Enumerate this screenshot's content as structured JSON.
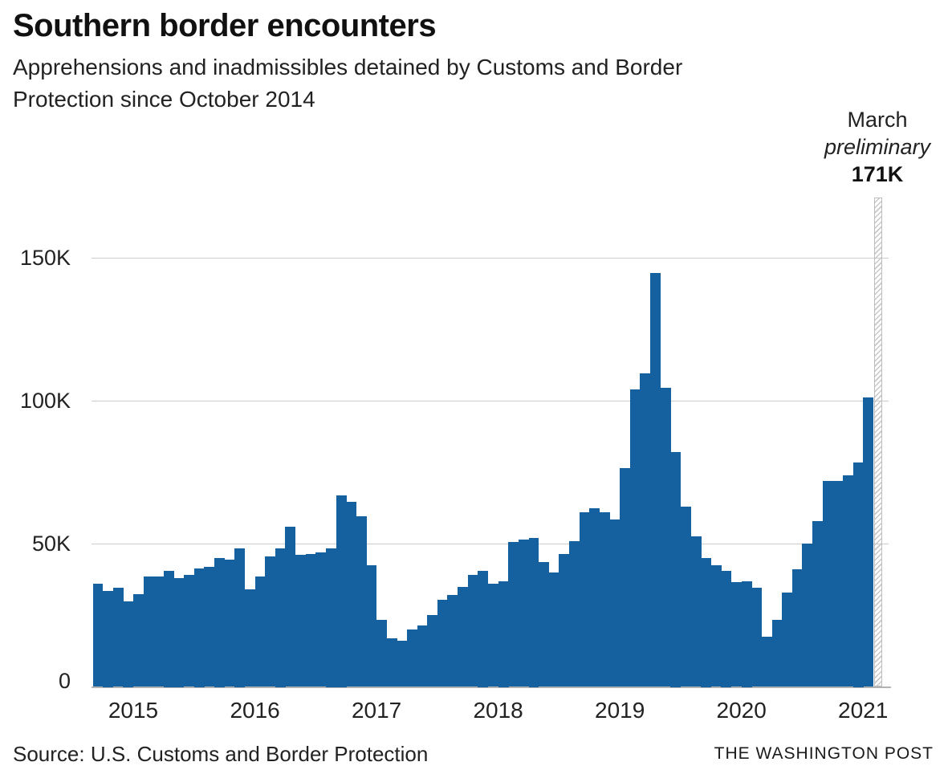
{
  "header": {
    "title": "Southern border encounters",
    "subtitle_lines": [
      "Apprehensions and inadmissibles detained by Customs and Border",
      "Protection since October 2014"
    ]
  },
  "annotation": {
    "month": "March",
    "status": "preliminary",
    "value": "171K"
  },
  "footer": {
    "source": "Source: U.S. Customs and Border Protection",
    "credit": "THE WASHINGTON POST"
  },
  "colors": {
    "bar_blue": "#15609f",
    "gridline": "#cccccc",
    "axis": "#b3b3b3",
    "hatch_gray": "#c8c8c8",
    "text": "#222222"
  },
  "chart_data": {
    "type": "bar",
    "title": "Southern border encounters",
    "subtitle": "Apprehensions and inadmissibles detained by Customs and Border Protection since October 2014",
    "unit": "thousands of people per month",
    "frequency": "monthly",
    "x_start": "2014-10",
    "x_end": "2021-03",
    "grid": "horizontal",
    "ylim": [
      0,
      175
    ],
    "y_ticks": [
      {
        "value": 0,
        "label": "0"
      },
      {
        "value": 50,
        "label": "50K"
      },
      {
        "value": 100,
        "label": "100K"
      },
      {
        "value": 150,
        "label": "150K"
      }
    ],
    "year_ticks": [
      {
        "label": "2015",
        "jan_index": 3
      },
      {
        "label": "2016",
        "jan_index": 15
      },
      {
        "label": "2017",
        "jan_index": 27
      },
      {
        "label": "2018",
        "jan_index": 39
      },
      {
        "label": "2019",
        "jan_index": 51
      },
      {
        "label": "2020",
        "jan_index": 63
      },
      {
        "label": "2021",
        "jan_index": 75
      }
    ],
    "values_k": [
      36,
      33.5,
      34.5,
      30,
      32.5,
      38.5,
      38.5,
      40.5,
      38,
      39,
      41.5,
      42,
      45,
      44.5,
      48.5,
      34,
      38.5,
      45.5,
      48.5,
      56,
      46,
      46.5,
      47,
      48.5,
      67,
      64.5,
      59.5,
      42.5,
      23.5,
      17,
      16,
      20,
      21.5,
      25,
      30.5,
      32,
      35,
      39,
      40.5,
      36,
      37,
      50.5,
      51.5,
      52,
      43.5,
      40,
      46.5,
      51,
      61,
      62.5,
      61,
      58.5,
      76.5,
      104,
      109.5,
      144.5,
      104.5,
      82,
      63,
      52.5,
      45,
      42.5,
      40.5,
      36.5,
      37,
      34.5,
      17.5,
      23.5,
      33,
      41,
      50,
      58,
      72,
      72,
      74,
      78.5,
      101,
      171
    ],
    "last_bar_preliminary": true,
    "preliminary_note": "March preliminary 171K"
  }
}
